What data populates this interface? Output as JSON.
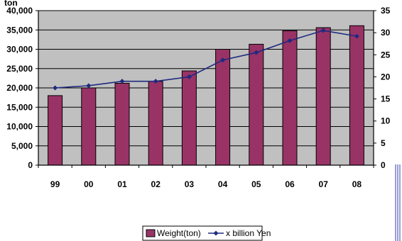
{
  "chart_data": {
    "type": "bar",
    "categories": [
      "99",
      "00",
      "01",
      "02",
      "03",
      "04",
      "05",
      "06",
      "07",
      "08"
    ],
    "series": [
      {
        "name": "Weight(ton)",
        "type": "bar",
        "axis": "left",
        "color": "#993366",
        "values": [
          18000,
          20000,
          21200,
          21700,
          24400,
          30000,
          31300,
          34800,
          35600,
          36100
        ]
      },
      {
        "name": "x billion Yen",
        "type": "line",
        "axis": "right",
        "color": "#1f2a80",
        "values": [
          17.5,
          18.0,
          19.0,
          19.0,
          20.0,
          23.8,
          25.5,
          28.2,
          30.5,
          29.2
        ]
      }
    ],
    "ylim_left": [
      0,
      40000
    ],
    "yticks_left": [
      0,
      5000,
      10000,
      15000,
      20000,
      25000,
      30000,
      35000,
      40000
    ],
    "yticks_left_labels": [
      "0",
      "5,000",
      "10,000",
      "15,000",
      "20,000",
      "25,000",
      "30,000",
      "35,000",
      "40,000"
    ],
    "ylim_right": [
      0,
      35
    ],
    "yticks_right": [
      0,
      5,
      10,
      15,
      20,
      25,
      30,
      35
    ],
    "left_axis_unit": "ton",
    "plot_background": "#c0c0c0",
    "grid": "horizontal",
    "legend_position": "bottom"
  }
}
